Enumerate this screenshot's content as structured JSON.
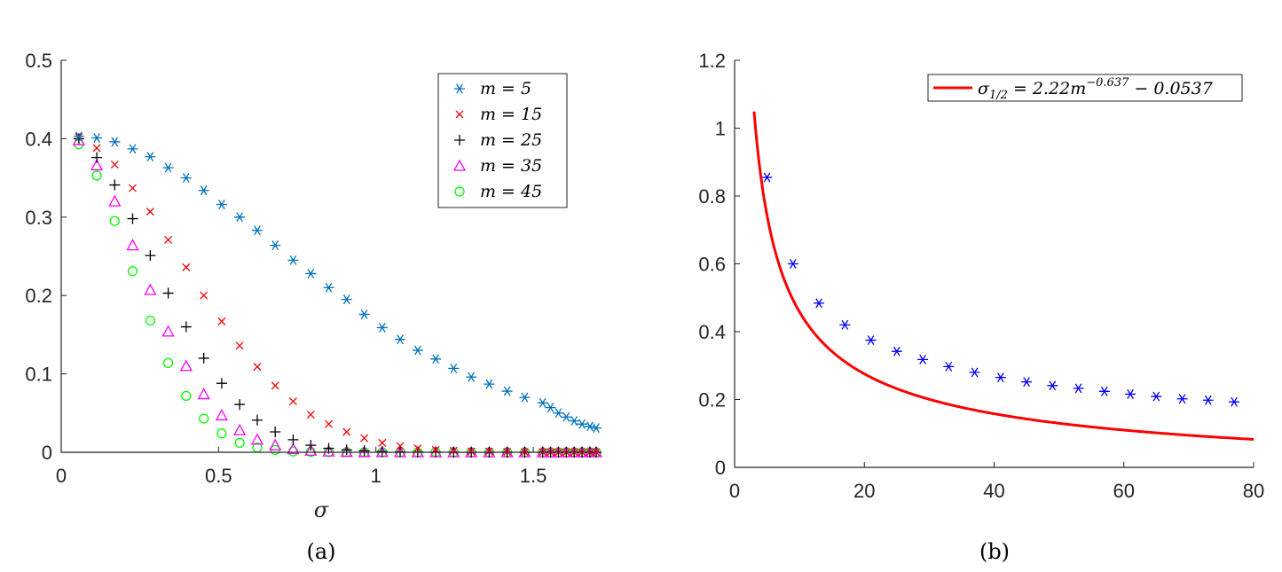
{
  "figure": {
    "captions": [
      "(a)",
      "(b)"
    ]
  },
  "chart_data": [
    {
      "type": "scatter",
      "caption": "(a)",
      "xlabel": "σ",
      "ylabel": "",
      "xlim": [
        0,
        1.7
      ],
      "ylim": [
        0,
        0.5
      ],
      "xticks": [
        "0",
        "0.5",
        "1",
        "1.5"
      ],
      "yticks": [
        "0",
        "0.1",
        "0.2",
        "0.3",
        "0.4",
        "0.5"
      ],
      "legend_position": "top-right",
      "series": [
        {
          "name": "m = 5",
          "marker": "asterisk",
          "color": "#0072BD",
          "x": [
            0.056,
            0.113,
            0.17,
            0.227,
            0.283,
            0.34,
            0.397,
            0.453,
            0.51,
            0.567,
            0.623,
            0.68,
            0.737,
            0.793,
            0.85,
            0.907,
            0.963,
            1.02,
            1.077,
            1.133,
            1.19,
            1.247,
            1.303,
            1.36,
            1.417,
            1.473,
            1.53,
            1.555,
            1.58,
            1.605,
            1.63,
            1.655,
            1.68,
            1.7
          ],
          "y": [
            0.403,
            0.401,
            0.396,
            0.387,
            0.377,
            0.363,
            0.35,
            0.334,
            0.316,
            0.3,
            0.283,
            0.264,
            0.245,
            0.228,
            0.21,
            0.195,
            0.176,
            0.159,
            0.144,
            0.13,
            0.119,
            0.107,
            0.096,
            0.087,
            0.078,
            0.07,
            0.063,
            0.057,
            0.05,
            0.045,
            0.04,
            0.036,
            0.033,
            0.031
          ]
        },
        {
          "name": "m = 15",
          "marker": "x",
          "color": "#FF0000",
          "x": [
            0.056,
            0.113,
            0.17,
            0.227,
            0.283,
            0.34,
            0.397,
            0.453,
            0.51,
            0.567,
            0.623,
            0.68,
            0.737,
            0.793,
            0.85,
            0.907,
            0.963,
            1.02,
            1.077,
            1.133,
            1.19,
            1.247,
            1.303,
            1.36,
            1.417,
            1.473,
            1.53,
            1.555,
            1.58,
            1.605,
            1.63,
            1.655,
            1.68,
            1.7
          ],
          "y": [
            0.402,
            0.388,
            0.367,
            0.337,
            0.307,
            0.271,
            0.236,
            0.2,
            0.167,
            0.136,
            0.109,
            0.085,
            0.065,
            0.048,
            0.036,
            0.026,
            0.018,
            0.012,
            0.008,
            0.005,
            0.003,
            0.002,
            0.001,
            0.001,
            0.0005,
            0.0003,
            0.0002,
            0.0001,
            0.0001,
            0.0001,
            0.0001,
            0.0001,
            0.0001,
            0.0001
          ]
        },
        {
          "name": "m = 25",
          "marker": "plus",
          "color": "#000000",
          "x": [
            0.056,
            0.113,
            0.17,
            0.227,
            0.283,
            0.34,
            0.397,
            0.453,
            0.51,
            0.567,
            0.623,
            0.68,
            0.737,
            0.793,
            0.85,
            0.907,
            0.963,
            1.02,
            1.077,
            1.133,
            1.19,
            1.247,
            1.303,
            1.36,
            1.417,
            1.473,
            1.53,
            1.555,
            1.58,
            1.605,
            1.63,
            1.655,
            1.68,
            1.7
          ],
          "y": [
            0.4,
            0.376,
            0.341,
            0.298,
            0.251,
            0.203,
            0.16,
            0.12,
            0.088,
            0.061,
            0.041,
            0.026,
            0.016,
            0.009,
            0.005,
            0.003,
            0.002,
            0.001,
            0.0005,
            0.0003,
            0.0001,
            0.0001,
            0,
            0,
            0,
            0,
            0,
            0,
            0,
            0,
            0,
            0,
            0,
            0
          ]
        },
        {
          "name": "m = 35",
          "marker": "triangle",
          "color": "#FF00FF",
          "x": [
            0.056,
            0.113,
            0.17,
            0.227,
            0.283,
            0.34,
            0.397,
            0.453,
            0.51,
            0.567,
            0.623,
            0.68,
            0.737,
            0.793,
            0.85,
            0.907,
            0.963,
            1.02,
            1.077,
            1.133,
            1.19,
            1.247,
            1.303,
            1.36,
            1.417,
            1.473,
            1.53,
            1.555,
            1.58,
            1.605,
            1.63,
            1.655,
            1.68,
            1.7
          ],
          "y": [
            0.398,
            0.366,
            0.32,
            0.264,
            0.207,
            0.154,
            0.11,
            0.074,
            0.047,
            0.028,
            0.016,
            0.009,
            0.004,
            0.002,
            0.001,
            0.0005,
            0.0002,
            0.0001,
            0,
            0,
            0,
            0,
            0,
            0,
            0,
            0,
            0,
            0,
            0,
            0,
            0,
            0,
            0,
            0
          ]
        },
        {
          "name": "m = 45",
          "marker": "circle",
          "color": "#00FF00",
          "x": [
            0.056,
            0.113,
            0.17,
            0.227,
            0.283,
            0.34,
            0.397,
            0.453,
            0.51,
            0.567,
            0.623,
            0.68,
            0.737,
            0.793,
            0.85,
            0.907,
            0.963,
            1.02,
            1.077,
            1.133,
            1.19,
            1.247,
            1.303,
            1.36,
            1.417,
            1.473,
            1.53,
            1.555,
            1.58,
            1.605,
            1.63,
            1.655,
            1.68,
            1.7
          ],
          "y": [
            0.393,
            0.353,
            0.295,
            0.231,
            0.168,
            0.114,
            0.072,
            0.043,
            0.024,
            0.012,
            0.006,
            0.003,
            0.001,
            0.0005,
            0.0002,
            0.0001,
            0,
            0,
            0,
            0,
            0,
            0,
            0,
            0,
            0,
            0,
            0,
            0,
            0,
            0,
            0,
            0,
            0,
            0
          ]
        }
      ]
    },
    {
      "type": "line",
      "caption": "(b)",
      "xlabel": "",
      "ylabel": "",
      "xlim": [
        0,
        80
      ],
      "ylim": [
        0,
        1.2
      ],
      "xticks": [
        "0",
        "20",
        "40",
        "60",
        "80"
      ],
      "yticks": [
        "0",
        "0.2",
        "0.4",
        "0.6",
        "0.8",
        "1",
        "1.2"
      ],
      "legend_position": "top-right",
      "legend_label": "σ1/2 = 2.22m−0.637 − 0.0537",
      "fit": {
        "name": "σ1/2 = 2.22m−0.637 − 0.0537",
        "a": 2.22,
        "b": -0.637,
        "c": -0.0537,
        "xrange": [
          3,
          80
        ],
        "color": "#FF0000"
      },
      "points": {
        "marker": "asterisk",
        "color": "#0000FF",
        "x": [
          5,
          9,
          13,
          17,
          21,
          25,
          29,
          33,
          37,
          41,
          45,
          49,
          53,
          57,
          61,
          65,
          69,
          73,
          77
        ],
        "y": [
          0.855,
          0.6,
          0.484,
          0.42,
          0.375,
          0.342,
          0.318,
          0.297,
          0.28,
          0.265,
          0.252,
          0.241,
          0.233,
          0.224,
          0.216,
          0.209,
          0.202,
          0.198,
          0.193
        ]
      }
    }
  ]
}
